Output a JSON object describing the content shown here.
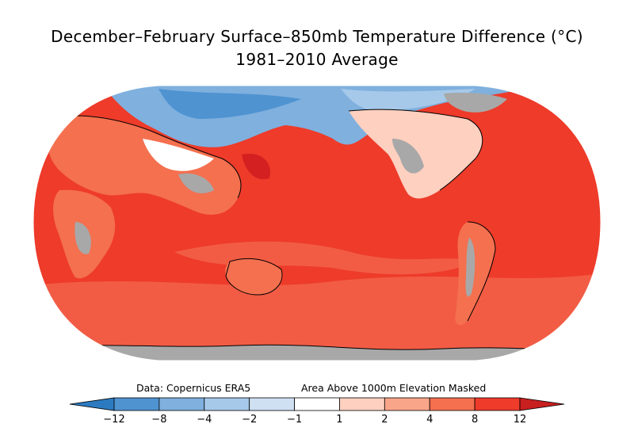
{
  "title": {
    "line1": "December–February Surface–850mb Temperature Difference (°C)",
    "line2": "1981–2010 Average"
  },
  "notes": {
    "source": "Data: Copernicus ERA5",
    "mask": "Area Above 1000m Elevation Masked"
  },
  "colors": {
    "ocean_main": "#ee3b2a",
    "ocean_light": "#f25c45",
    "deep_red": "#d42020",
    "masked": "#a8a8a8",
    "coastline": "#000000"
  },
  "colorbar": {
    "tick_labels": [
      "−12",
      "−8",
      "−4",
      "−2",
      "−1",
      "1",
      "2",
      "4",
      "8",
      "12"
    ],
    "colors": [
      "#2c7bc1",
      "#4f93d1",
      "#7fb0de",
      "#a6c9ea",
      "#cfe0f3",
      "#ffffff",
      "#fdd0c0",
      "#f9a589",
      "#f4704f",
      "#ee3b2a",
      "#c81f1f"
    ]
  },
  "map": {
    "projection": "Robinson",
    "central_longitude": "180"
  }
}
